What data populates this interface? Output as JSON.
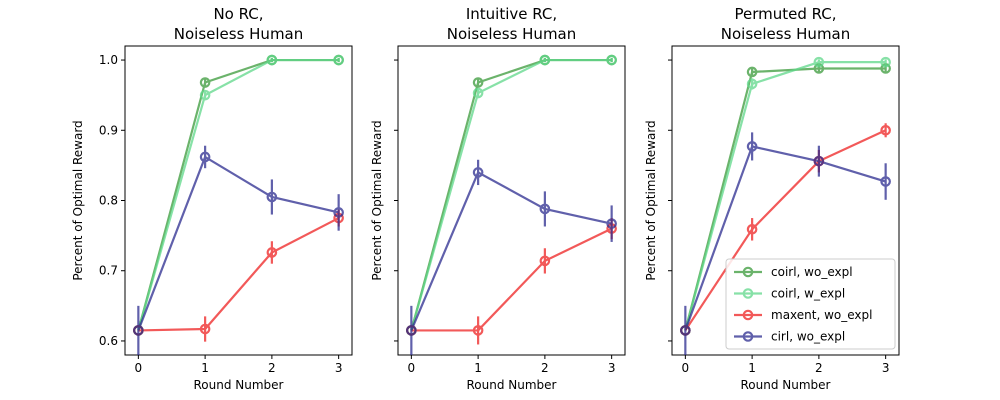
{
  "figure": {
    "ylabel": "Percent of Optimal Reward",
    "xlabel": "Round Number"
  },
  "series_styles": [
    {
      "name": "coirl, wo_expl",
      "color": "#3a9a3a"
    },
    {
      "name": "coirl, w_expl",
      "color": "#5fd88a"
    },
    {
      "name": "maxent, wo_expl",
      "color": "#ee2222"
    },
    {
      "name": "cirl, wo_expl",
      "color": "#2b2b8f"
    }
  ],
  "chart_data": [
    {
      "type": "line",
      "title_line1": "No RC,",
      "title_line2": "Noiseless Human",
      "xlabel": "Round Number",
      "ylabel": "Percent of Optimal Reward",
      "x": [
        0,
        1,
        2,
        3
      ],
      "xticks": [
        "0",
        "1",
        "2",
        "3"
      ],
      "yticks": [
        "0.6",
        "0.7",
        "0.8",
        "0.9",
        "1.0"
      ],
      "ylim": [
        0.58,
        1.02
      ],
      "series": [
        {
          "name": "coirl, wo_expl",
          "values": [
            0.615,
            0.968,
            1.0,
            1.0
          ],
          "err": [
            0.0,
            0.005,
            0.003,
            0.003
          ]
        },
        {
          "name": "coirl, w_expl",
          "values": [
            0.615,
            0.95,
            1.0,
            1.0
          ],
          "err": [
            0.0,
            0.006,
            0.003,
            0.003
          ]
        },
        {
          "name": "maxent, wo_expl",
          "values": [
            0.615,
            0.617,
            0.726,
            0.775
          ],
          "err": [
            0.0,
            0.018,
            0.016,
            0.012
          ]
        },
        {
          "name": "cirl, wo_expl",
          "values": [
            0.615,
            0.862,
            0.805,
            0.783
          ],
          "err": [
            0.035,
            0.016,
            0.025,
            0.026
          ]
        }
      ]
    },
    {
      "type": "line",
      "title_line1": "Intuitive RC,",
      "title_line2": "Noiseless Human",
      "xlabel": "Round Number",
      "ylabel": "Percent of Optimal Reward",
      "x": [
        0,
        1,
        2,
        3
      ],
      "xticks": [
        "0",
        "1",
        "2",
        "3"
      ],
      "yticks": [
        "0.6",
        "0.7",
        "0.8",
        "0.9",
        "1.0"
      ],
      "ylim": [
        0.58,
        1.02
      ],
      "series": [
        {
          "name": "coirl, wo_expl",
          "values": [
            0.615,
            0.968,
            1.0,
            1.0
          ],
          "err": [
            0.0,
            0.005,
            0.003,
            0.003
          ]
        },
        {
          "name": "coirl, w_expl",
          "values": [
            0.615,
            0.953,
            1.0,
            1.0
          ],
          "err": [
            0.0,
            0.006,
            0.003,
            0.003
          ]
        },
        {
          "name": "maxent, wo_expl",
          "values": [
            0.615,
            0.615,
            0.714,
            0.76
          ],
          "err": [
            0.0,
            0.02,
            0.018,
            0.015
          ]
        },
        {
          "name": "cirl, wo_expl",
          "values": [
            0.615,
            0.84,
            0.788,
            0.767
          ],
          "err": [
            0.035,
            0.018,
            0.025,
            0.026
          ]
        }
      ]
    },
    {
      "type": "line",
      "title_line1": "Permuted RC,",
      "title_line2": "Noiseless Human",
      "xlabel": "Round Number",
      "ylabel": "Percent of Optimal Reward",
      "x": [
        0,
        1,
        2,
        3
      ],
      "xticks": [
        "0",
        "1",
        "2",
        "3"
      ],
      "yticks": [
        "0.6",
        "0.7",
        "0.8",
        "0.9",
        "1.0"
      ],
      "ylim": [
        0.58,
        1.02
      ],
      "legend": "lower-right",
      "series": [
        {
          "name": "coirl, wo_expl",
          "values": [
            0.615,
            0.983,
            0.988,
            0.988
          ],
          "err": [
            0.0,
            0.005,
            0.005,
            0.005
          ]
        },
        {
          "name": "coirl, w_expl",
          "values": [
            0.615,
            0.966,
            0.997,
            0.997
          ],
          "err": [
            0.0,
            0.008,
            0.004,
            0.004
          ]
        },
        {
          "name": "maxent, wo_expl",
          "values": [
            0.615,
            0.759,
            0.856,
            0.9
          ],
          "err": [
            0.0,
            0.016,
            0.016,
            0.01
          ]
        },
        {
          "name": "cirl, wo_expl",
          "values": [
            0.615,
            0.877,
            0.856,
            0.827
          ],
          "err": [
            0.035,
            0.02,
            0.022,
            0.026
          ]
        }
      ]
    }
  ]
}
